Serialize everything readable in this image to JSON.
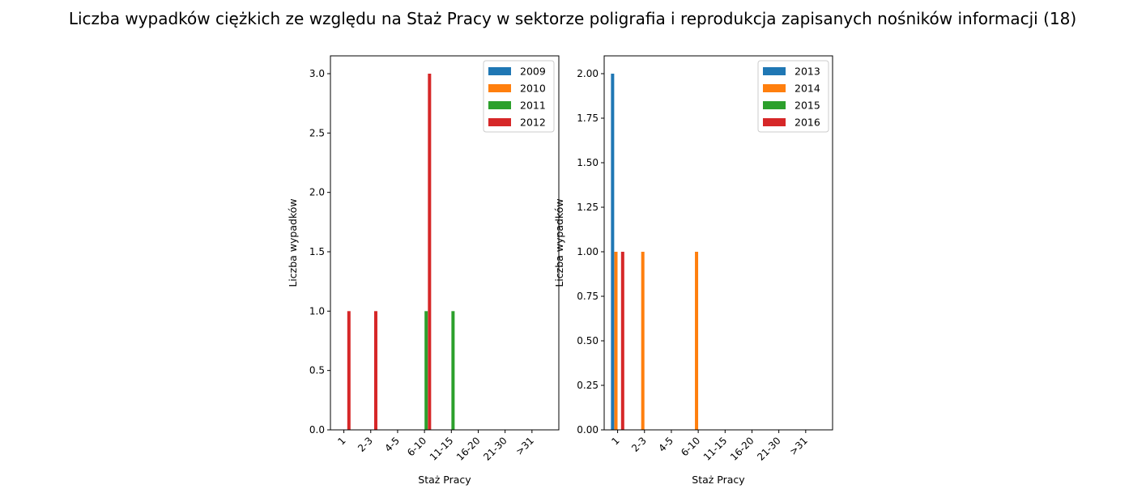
{
  "title": "Liczba wypadków ciężkich ze względu na Staż Pracy w sektorze poligrafia i reprodukcja zapisanych nośników informacji  (18)",
  "colors": {
    "c0": "#1f77b4",
    "c1": "#ff7f0e",
    "c2": "#2ca02c",
    "c3": "#d62728"
  },
  "chart_data": [
    {
      "type": "bar",
      "categories": [
        "1",
        "2-3",
        "4-5",
        "6-10",
        "11-15",
        "16-20",
        "21-30",
        ">31"
      ],
      "xlabel": "Staż Pracy",
      "ylabel": "Liczba wypadków",
      "ylim": [
        0,
        3.15
      ],
      "yticks": [
        "0.0",
        "0.5",
        "1.0",
        "1.5",
        "2.0",
        "2.5",
        "3.0"
      ],
      "ytick_values": [
        0,
        0.5,
        1.0,
        1.5,
        2.0,
        2.5,
        3.0
      ],
      "legend_position": "top-right",
      "series": [
        {
          "name": "2009",
          "values": [
            0,
            0,
            0,
            0,
            0,
            0,
            0,
            0
          ]
        },
        {
          "name": "2010",
          "values": [
            0,
            0,
            0,
            0,
            0,
            0,
            0,
            0
          ]
        },
        {
          "name": "2011",
          "values": [
            0,
            0,
            0,
            1,
            1,
            0,
            0,
            0
          ]
        },
        {
          "name": "2012",
          "values": [
            1,
            1,
            0,
            3,
            0,
            0,
            0,
            0
          ]
        }
      ]
    },
    {
      "type": "bar",
      "categories": [
        "1",
        "2-3",
        "4-5",
        "6-10",
        "11-15",
        "16-20",
        "21-30",
        ">31"
      ],
      "xlabel": "Staż Pracy",
      "ylabel": "Liczba wypadków",
      "ylim": [
        0,
        2.1
      ],
      "yticks": [
        "0.00",
        "0.25",
        "0.50",
        "0.75",
        "1.00",
        "1.25",
        "1.50",
        "1.75",
        "2.00"
      ],
      "ytick_values": [
        0,
        0.25,
        0.5,
        0.75,
        1.0,
        1.25,
        1.5,
        1.75,
        2.0
      ],
      "legend_position": "top-right",
      "series": [
        {
          "name": "2013",
          "values": [
            2,
            0,
            0,
            0,
            0,
            0,
            0,
            0
          ]
        },
        {
          "name": "2014",
          "values": [
            1,
            1,
            0,
            1,
            0,
            0,
            0,
            0
          ]
        },
        {
          "name": "2015",
          "values": [
            0,
            0,
            0,
            0,
            0,
            0,
            0,
            0
          ]
        },
        {
          "name": "2016",
          "values": [
            1,
            0,
            0,
            0,
            0,
            0,
            0,
            0
          ]
        }
      ]
    }
  ]
}
